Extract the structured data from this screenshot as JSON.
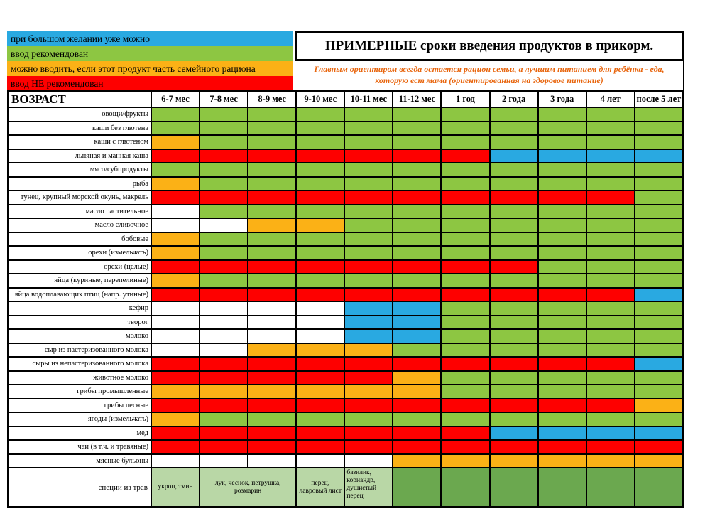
{
  "header": {
    "title": "ПРИМЕРНЫЕ сроки введения продуктов в прикорм.",
    "subtitle": "Главным ориентиром всегда остается рацион семьи, а лучшим питанием для ребёнка - еда, которую ест мама (ориентированная на здоровое питание)"
  },
  "chart_data": {
    "type": "table",
    "title": "ПРИМЕРНЫЕ сроки введения продуктов в прикорм.",
    "age_header_label": "ВОЗРАСТ",
    "columns": [
      "6-7 мес",
      "7-8 мес",
      "8-9 мес",
      "9-10 мес",
      "10-11 мес",
      "11-12 мес",
      "1 год",
      "2 года",
      "3 года",
      "4 лет",
      "после 5 лет"
    ],
    "legend": [
      {
        "code": "B",
        "color": "#29a9e1",
        "label": "при большом желании уже можно"
      },
      {
        "code": "G",
        "color": "#8dc642",
        "label": "ввод рекомендован"
      },
      {
        "code": "O",
        "color": "#fbb116",
        "label": "можно вводить, если этот продукт часть семейного рациона"
      },
      {
        "code": "R",
        "color": "#fe0000",
        "label": "ввод НЕ рекомендован"
      }
    ],
    "color_map": {
      "B": "#29a9e1",
      "G": "#8dc642",
      "O": "#fbb116",
      "R": "#fe0000",
      "W": "#ffffff",
      "LG": "#b9d7a6",
      "DG": "#6ba84f"
    },
    "rows": [
      {
        "label": "овощи/фрукты",
        "cells": [
          "G",
          "G",
          "G",
          "G",
          "G",
          "G",
          "G",
          "G",
          "G",
          "G",
          "G"
        ]
      },
      {
        "label": "каши без глютена",
        "cells": [
          "G",
          "G",
          "G",
          "G",
          "G",
          "G",
          "G",
          "G",
          "G",
          "G",
          "G"
        ]
      },
      {
        "label": "каши с глютеном",
        "cells": [
          "O",
          "G",
          "G",
          "G",
          "G",
          "G",
          "G",
          "G",
          "G",
          "G",
          "G"
        ]
      },
      {
        "label": "льняная и манная каша",
        "cells": [
          "R",
          "R",
          "R",
          "R",
          "R",
          "R",
          "R",
          "B",
          "B",
          "B",
          "B"
        ]
      },
      {
        "label": "мясо/субпродукты",
        "cells": [
          "G",
          "G",
          "G",
          "G",
          "G",
          "G",
          "G",
          "G",
          "G",
          "G",
          "G"
        ]
      },
      {
        "label": "рыба",
        "cells": [
          "O",
          "G",
          "G",
          "G",
          "G",
          "G",
          "G",
          "G",
          "G",
          "G",
          "G"
        ]
      },
      {
        "label": "тунец, крупный морской окунь, макрель",
        "cells": [
          "R",
          "R",
          "R",
          "R",
          "R",
          "R",
          "R",
          "R",
          "R",
          "R",
          "G"
        ]
      },
      {
        "label": "масло растительное",
        "cells": [
          "W",
          "G",
          "G",
          "G",
          "G",
          "G",
          "G",
          "G",
          "G",
          "G",
          "G"
        ]
      },
      {
        "label": "масло сливочное",
        "cells": [
          "W",
          "W",
          "O",
          "O",
          "G",
          "G",
          "G",
          "G",
          "G",
          "G",
          "G"
        ]
      },
      {
        "label": "бобовые",
        "cells": [
          "O",
          "G",
          "G",
          "G",
          "G",
          "G",
          "G",
          "G",
          "G",
          "G",
          "G"
        ]
      },
      {
        "label": "орехи (измельчать)",
        "cells": [
          "O",
          "G",
          "G",
          "G",
          "G",
          "G",
          "G",
          "G",
          "G",
          "G",
          "G"
        ]
      },
      {
        "label": "орехи (целые)",
        "cells": [
          "R",
          "R",
          "R",
          "R",
          "R",
          "R",
          "R",
          "R",
          "G",
          "G",
          "G"
        ]
      },
      {
        "label": "яйца (куриные, перепелиные)",
        "cells": [
          "O",
          "G",
          "G",
          "G",
          "G",
          "G",
          "G",
          "G",
          "G",
          "G",
          "G"
        ]
      },
      {
        "label": "яйца водоплавающих птиц (напр. утиные)",
        "cells": [
          "R",
          "R",
          "R",
          "R",
          "R",
          "R",
          "R",
          "R",
          "R",
          "R",
          "B"
        ]
      },
      {
        "label": "кефир",
        "cells": [
          "W",
          "W",
          "W",
          "W",
          "B",
          "B",
          "G",
          "G",
          "G",
          "G",
          "G"
        ]
      },
      {
        "label": "творог",
        "cells": [
          "W",
          "W",
          "W",
          "W",
          "B",
          "B",
          "G",
          "G",
          "G",
          "G",
          "G"
        ]
      },
      {
        "label": "молоко",
        "cells": [
          "W",
          "W",
          "W",
          "W",
          "B",
          "B",
          "G",
          "G",
          "G",
          "G",
          "G"
        ]
      },
      {
        "label": "сыр из пастеризованного молока",
        "cells": [
          "W",
          "W",
          "O",
          "O",
          "O",
          "G",
          "G",
          "G",
          "G",
          "G",
          "G"
        ]
      },
      {
        "label": "сыры из непастеризованного молока",
        "cells": [
          "R",
          "R",
          "R",
          "R",
          "R",
          "R",
          "R",
          "R",
          "R",
          "R",
          "B"
        ]
      },
      {
        "label": "животное молоко",
        "cells": [
          "R",
          "R",
          "R",
          "R",
          "R",
          "O",
          "G",
          "G",
          "G",
          "G",
          "G"
        ]
      },
      {
        "label": "грибы промышленные",
        "cells": [
          "O",
          "O",
          "O",
          "O",
          "O",
          "O",
          "G",
          "G",
          "G",
          "G",
          "G"
        ]
      },
      {
        "label": "грибы лесные",
        "cells": [
          "R",
          "R",
          "R",
          "R",
          "R",
          "R",
          "R",
          "R",
          "R",
          "R",
          "O"
        ]
      },
      {
        "label": "ягоды (измельчать)",
        "cells": [
          "O",
          "G",
          "G",
          "G",
          "G",
          "G",
          "G",
          "G",
          "G",
          "G",
          "G"
        ]
      },
      {
        "label": "мед",
        "cells": [
          "R",
          "R",
          "R",
          "R",
          "R",
          "R",
          "R",
          "B",
          "B",
          "B",
          "B"
        ]
      },
      {
        "label": "чаи (в т.ч. и травяные)",
        "cells": [
          "R",
          "R",
          "R",
          "R",
          "R",
          "R",
          "R",
          "R",
          "R",
          "R",
          "R"
        ]
      },
      {
        "label": "мясные бульоны",
        "cells": [
          "W",
          "W",
          "W",
          "W",
          "W",
          "O",
          "O",
          "O",
          "O",
          "O",
          "O"
        ]
      }
    ],
    "spice_row": {
      "label": "специи из трав",
      "cells": [
        {
          "text": "укроп, тмин",
          "span": 1,
          "color": "LG"
        },
        {
          "text": "лук, чеснок, петрушка, розмарин",
          "span": 2,
          "color": "LG"
        },
        {
          "text": "перец, лавровый лист",
          "span": 1,
          "color": "LG"
        },
        {
          "text": "базилик, кориандр, душистый перец",
          "span": 1,
          "color": "LG",
          "align": "left-top"
        },
        {
          "text": "",
          "span": 1,
          "color": "DG"
        },
        {
          "text": "",
          "span": 1,
          "color": "DG"
        },
        {
          "text": "",
          "span": 1,
          "color": "DG"
        },
        {
          "text": "",
          "span": 1,
          "color": "DG"
        },
        {
          "text": "",
          "span": 1,
          "color": "DG"
        },
        {
          "text": "",
          "span": 1,
          "color": "DG"
        }
      ]
    }
  }
}
